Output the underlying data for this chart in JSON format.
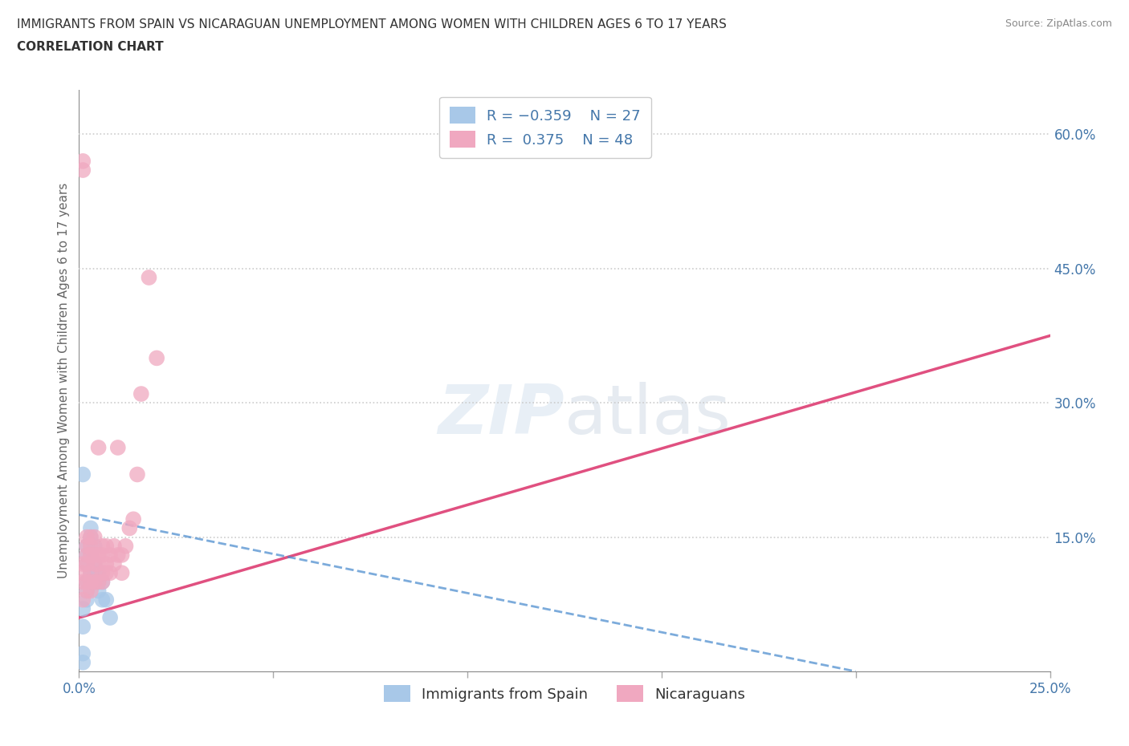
{
  "title_line1": "IMMIGRANTS FROM SPAIN VS NICARAGUAN UNEMPLOYMENT AMONG WOMEN WITH CHILDREN AGES 6 TO 17 YEARS",
  "title_line2": "CORRELATION CHART",
  "source_text": "Source: ZipAtlas.com",
  "ylabel": "Unemployment Among Women with Children Ages 6 to 17 years",
  "xlim": [
    0.0,
    0.25
  ],
  "ylim": [
    0.0,
    0.65
  ],
  "xtick_values": [
    0.0,
    0.05,
    0.1,
    0.15,
    0.2,
    0.25
  ],
  "xtick_labels_show": [
    "0.0%",
    "",
    "",
    "",
    "",
    "25.0%"
  ],
  "ytick_values_right": [
    0.0,
    0.15,
    0.3,
    0.45,
    0.6
  ],
  "ytick_labels_right": [
    "",
    "15.0%",
    "30.0%",
    "45.0%",
    "60.0%"
  ],
  "grid_color": "#cccccc",
  "background_color": "#ffffff",
  "legend_label1": "Immigrants from Spain",
  "legend_label2": "Nicaraguans",
  "color_blue": "#a8c8e8",
  "color_pink": "#f0a8c0",
  "color_blue_line": "#4488cc",
  "color_pink_line": "#e05080",
  "title_color": "#333333",
  "axis_label_color": "#4477aa",
  "blue_scatter_x": [
    0.001,
    0.001,
    0.001,
    0.001,
    0.002,
    0.002,
    0.002,
    0.002,
    0.002,
    0.002,
    0.003,
    0.003,
    0.003,
    0.003,
    0.003,
    0.004,
    0.004,
    0.004,
    0.004,
    0.005,
    0.005,
    0.005,
    0.006,
    0.006,
    0.007,
    0.008,
    0.001
  ],
  "blue_scatter_y": [
    0.01,
    0.02,
    0.05,
    0.07,
    0.08,
    0.09,
    0.1,
    0.12,
    0.13,
    0.14,
    0.1,
    0.11,
    0.13,
    0.15,
    0.16,
    0.1,
    0.11,
    0.12,
    0.14,
    0.09,
    0.1,
    0.11,
    0.08,
    0.1,
    0.08,
    0.06,
    0.22
  ],
  "pink_scatter_x": [
    0.001,
    0.001,
    0.001,
    0.001,
    0.001,
    0.002,
    0.002,
    0.002,
    0.002,
    0.002,
    0.002,
    0.003,
    0.003,
    0.003,
    0.003,
    0.003,
    0.003,
    0.004,
    0.004,
    0.004,
    0.004,
    0.005,
    0.005,
    0.005,
    0.005,
    0.006,
    0.006,
    0.006,
    0.006,
    0.007,
    0.007,
    0.007,
    0.008,
    0.008,
    0.009,
    0.009,
    0.01,
    0.01,
    0.011,
    0.011,
    0.012,
    0.013,
    0.014,
    0.015,
    0.016,
    0.018,
    0.02,
    0.001
  ],
  "pink_scatter_y": [
    0.1,
    0.11,
    0.12,
    0.56,
    0.57,
    0.09,
    0.1,
    0.12,
    0.13,
    0.14,
    0.15,
    0.09,
    0.1,
    0.11,
    0.13,
    0.14,
    0.15,
    0.1,
    0.12,
    0.13,
    0.15,
    0.1,
    0.12,
    0.13,
    0.25,
    0.1,
    0.11,
    0.13,
    0.14,
    0.11,
    0.12,
    0.14,
    0.11,
    0.13,
    0.12,
    0.14,
    0.13,
    0.25,
    0.11,
    0.13,
    0.14,
    0.16,
    0.17,
    0.22,
    0.31,
    0.44,
    0.35,
    0.08
  ],
  "pink_trend_x0": 0.0,
  "pink_trend_y0": 0.06,
  "pink_trend_x1": 0.25,
  "pink_trend_y1": 0.375,
  "blue_trend_x0": 0.0,
  "blue_trend_y0": 0.175,
  "blue_trend_x1": 0.2,
  "blue_trend_y1": 0.0
}
